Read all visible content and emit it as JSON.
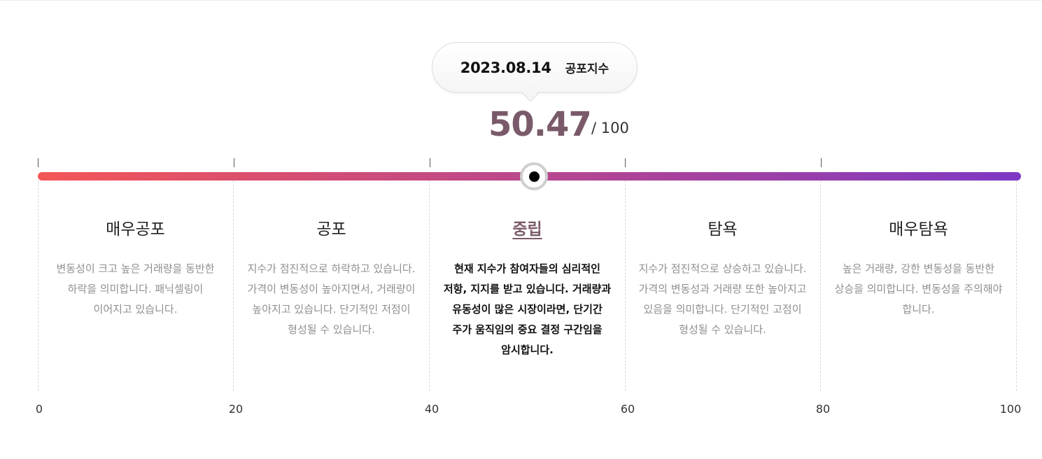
{
  "header": {
    "date": "2023.08.14",
    "index_label": "공포지수"
  },
  "score": {
    "value": "50.47",
    "max_label": "/ 100",
    "value_number": 50.47,
    "max_number": 100
  },
  "colors": {
    "bar_start": "#f45656",
    "bar_end": "#7e38c4",
    "score": "#7a5a6a",
    "active_text": "#111111",
    "inactive_text": "#8f8f8f"
  },
  "marker": {
    "icon": "position-marker-icon"
  },
  "stages": [
    {
      "title": "매우공포",
      "description": "변동성이 크고 높은 거래량을 동반한 하락을 의미합니다. 패닉셀링이 이어지고 있습니다.",
      "active": false
    },
    {
      "title": "공포",
      "description": "지수가 점진적으로 하락하고 있습니다. 가격이 변동성이 높아지면서, 거래량이 높아지고 있습니다. 단기적인 저점이 형성될 수 있습니다.",
      "active": false
    },
    {
      "title": "중립",
      "description": "현재 지수가 참여자들의 심리적인 저항, 지지를 받고 있습니다. 거래량과 유동성이 많은 시장이라면, 단기간 주가 움직임의 중요 결정 구간임을 암시합니다.",
      "active": true
    },
    {
      "title": "탐욕",
      "description": "지수가 점진적으로 상승하고 있습니다. 가격의 변동성과 거래량 또한 높아지고 있음을 의미합니다. 단기적인 고점이 형성될 수 있습니다.",
      "active": false
    },
    {
      "title": "매우탐욕",
      "description": "높은 거래량, 강한 변동성을 동반한 상승을 의미합니다. 변동성을 주의해야 합니다.",
      "active": false
    }
  ],
  "axis": {
    "labels": [
      "0",
      "20",
      "40",
      "60",
      "80",
      "100"
    ]
  }
}
